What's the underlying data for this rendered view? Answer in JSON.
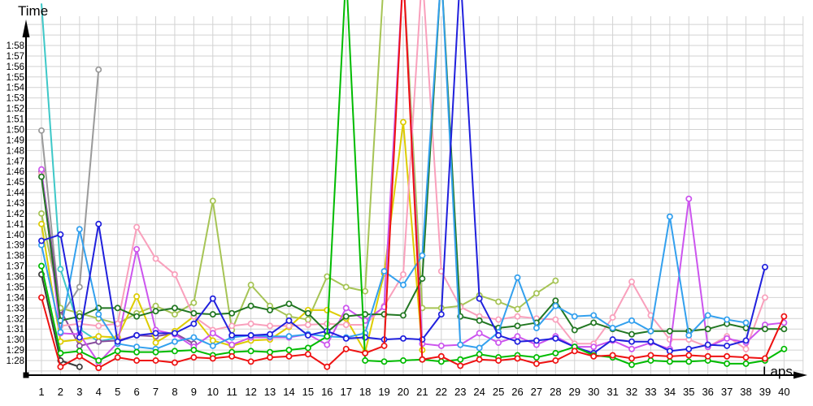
{
  "chart_data": {
    "type": "line",
    "title": "",
    "xlabel": "Laps",
    "ylabel": "Time",
    "x": [
      1,
      2,
      3,
      4,
      5,
      6,
      7,
      8,
      9,
      10,
      11,
      12,
      13,
      14,
      15,
      16,
      17,
      18,
      19,
      20,
      21,
      22,
      23,
      24,
      25,
      26,
      27,
      28,
      29,
      30,
      31,
      32,
      33,
      34,
      35,
      36,
      37,
      38,
      39,
      40
    ],
    "y_ticks": [
      "1:28",
      "1:29",
      "1:30",
      "1:31",
      "1:32",
      "1:33",
      "1:34",
      "1:35",
      "1:36",
      "1:37",
      "1:38",
      "1:39",
      "1:40",
      "1:41",
      "1:42",
      "1:43",
      "1:44",
      "1:45",
      "1:46",
      "1:47",
      "1:48",
      "1:49",
      "1:50",
      "1:51",
      "1:52",
      "1:53",
      "1:54",
      "1:55",
      "1:56",
      "1:57",
      "1:58"
    ],
    "ylim_seconds": [
      87,
      121
    ],
    "grid": true,
    "legend_position": "none",
    "units": "lap time in seconds after 1:00 (e.g. 88.4 = 1:28.4); null = no lap recorded; 125 = spike extending above visible axis (pit stop / off-chart)",
    "grid_color": "#d2d2d2",
    "axis_color": "#000000",
    "series": [
      {
        "name": "gray",
        "color": "#9a9a9a",
        "values": [
          109.9,
          92.2,
          95.0,
          115.7,
          null,
          null,
          null,
          null,
          null,
          null,
          null,
          null,
          null,
          null,
          null,
          null,
          null,
          null,
          null,
          null,
          null,
          null,
          null,
          null,
          null,
          null,
          null,
          null,
          null,
          null,
          null,
          null,
          null,
          null,
          null,
          null,
          null,
          null,
          null,
          null
        ]
      },
      {
        "name": "black",
        "color": "#3a3a3a",
        "values": [
          96.2,
          88.0,
          87.4,
          null,
          null,
          null,
          null,
          null,
          null,
          null,
          null,
          null,
          null,
          null,
          null,
          null,
          null,
          null,
          null,
          null,
          null,
          null,
          null,
          null,
          null,
          null,
          null,
          null,
          null,
          null,
          null,
          null,
          null,
          null,
          null,
          null,
          null,
          null,
          null,
          null
        ]
      },
      {
        "name": "cyan",
        "color": "#3ec8c8",
        "values": [
          122,
          96.7,
          91.0,
          89.8,
          90.2,
          null,
          null,
          null,
          null,
          null,
          null,
          null,
          null,
          null,
          null,
          null,
          null,
          null,
          null,
          null,
          null,
          null,
          null,
          null,
          null,
          null,
          null,
          null,
          null,
          null,
          null,
          null,
          null,
          null,
          null,
          null,
          null,
          null,
          null,
          null
        ]
      },
      {
        "name": "purple",
        "color": "#884d9e",
        "values": [
          106.0,
          92.8,
          89.4,
          89.8,
          89.9,
          90.4,
          90.3,
          90.6,
          89.6,
          null,
          null,
          null,
          null,
          null,
          null,
          null,
          null,
          null,
          null,
          null,
          null,
          null,
          null,
          null,
          null,
          null,
          null,
          null,
          null,
          null,
          null,
          null,
          null,
          null,
          null,
          null,
          null,
          null,
          null,
          null
        ]
      },
      {
        "name": "olive",
        "color": "#a6c455",
        "values": [
          102.0,
          93.0,
          92.5,
          92.0,
          91.5,
          92.5,
          93.2,
          92.4,
          93.5,
          103.2,
          90.9,
          95.2,
          93.2,
          92.2,
          91.9,
          96.0,
          95.0,
          94.6,
          125,
          125,
          93.0,
          93.0,
          93.2,
          94.2,
          93.6,
          92.9,
          94.4,
          95.6,
          null,
          null,
          null,
          null,
          null,
          null,
          null,
          null,
          null,
          null,
          null,
          null
        ]
      },
      {
        "name": "yellow",
        "color": "#ddcc00",
        "values": [
          101.0,
          89.8,
          90.0,
          90.3,
          90.2,
          94.1,
          89.7,
          90.8,
          92.2,
          89.9,
          89.4,
          89.9,
          90.0,
          91.2,
          92.8,
          92.8,
          92.0,
          88.8,
          96.3,
          110.7,
          89.0,
          null,
          null,
          null,
          null,
          null,
          null,
          null,
          null,
          null,
          null,
          null,
          null,
          null,
          null,
          null,
          null,
          null,
          null,
          null
        ]
      },
      {
        "name": "pink",
        "color": "#f9a0bc",
        "values": [
          105.8,
          91.3,
          91.5,
          91.3,
          91.5,
          100.7,
          97.7,
          96.2,
          92.2,
          90.9,
          91.3,
          91.5,
          91.3,
          91.3,
          91.4,
          91.5,
          91.4,
          91.4,
          93.2,
          96.2,
          125,
          96.5,
          93.1,
          92.2,
          91.9,
          92.2,
          92.0,
          91.9,
          89.6,
          89.6,
          92.1,
          95.5,
          92.3,
          90.0,
          90.0,
          89.3,
          90.3,
          89.1,
          94.0,
          null
        ]
      },
      {
        "name": "magenta",
        "color": "#cc55ee",
        "values": [
          106.2,
          90.6,
          90.5,
          87.8,
          89.7,
          98.6,
          90.9,
          90.5,
          89.3,
          90.6,
          89.5,
          90.2,
          90.2,
          90.2,
          90.5,
          89.5,
          93.0,
          91.8,
          93.1,
          125,
          89.6,
          89.4,
          89.5,
          90.6,
          89.7,
          90.3,
          89.5,
          90.3,
          89.3,
          89.3,
          89.9,
          89.1,
          89.7,
          89.1,
          103.4,
          89.3,
          90.1,
          89.7,
          91.4,
          91.6
        ]
      },
      {
        "name": "dark-green",
        "color": "#227722",
        "values": [
          105.5,
          91.8,
          92.2,
          93.0,
          93.0,
          92.2,
          92.7,
          93.0,
          92.5,
          92.4,
          92.5,
          93.2,
          92.8,
          93.4,
          92.5,
          90.7,
          92.2,
          92.4,
          92.4,
          92.3,
          95.8,
          125,
          92.2,
          91.8,
          91.1,
          91.3,
          91.6,
          93.7,
          90.9,
          91.6,
          91.0,
          90.5,
          90.8,
          90.8,
          90.8,
          91.0,
          91.5,
          91.1,
          91.0,
          91.0
        ]
      },
      {
        "name": "dodger-blue",
        "color": "#33a0ee",
        "values": [
          99.0,
          90.7,
          100.5,
          92.4,
          89.6,
          89.3,
          89.1,
          89.8,
          90.2,
          89.4,
          90.2,
          90.4,
          90.3,
          90.3,
          90.5,
          90.3,
          90.2,
          90.6,
          96.5,
          95.2,
          98.0,
          125,
          89.5,
          89.2,
          90.7,
          95.9,
          91.1,
          93.2,
          92.2,
          92.3,
          91.1,
          91.8,
          90.8,
          101.7,
          90.4,
          92.3,
          91.9,
          91.6,
          null,
          null
        ]
      },
      {
        "name": "blue",
        "color": "#2020dd",
        "values": [
          99.4,
          100.0,
          90.2,
          101.0,
          89.8,
          90.4,
          90.6,
          90.6,
          91.5,
          93.9,
          90.4,
          90.4,
          90.5,
          91.8,
          90.4,
          90.8,
          90.1,
          90.2,
          90.0,
          90.1,
          90.0,
          92.4,
          125,
          93.9,
          90.4,
          89.8,
          89.9,
          90.1,
          89.3,
          88.7,
          90.0,
          89.8,
          89.8,
          88.9,
          89.1,
          89.5,
          89.4,
          89.9,
          96.9,
          null
        ]
      },
      {
        "name": "green",
        "color": "#00bb00",
        "values": [
          97.0,
          88.7,
          88.9,
          88.0,
          88.9,
          88.8,
          88.8,
          88.9,
          89.0,
          88.5,
          88.8,
          88.9,
          88.8,
          89.0,
          89.2,
          90.3,
          125,
          88.0,
          87.9,
          88.0,
          88.1,
          87.9,
          88.1,
          88.6,
          88.3,
          88.5,
          88.3,
          88.7,
          89.3,
          88.5,
          88.3,
          87.6,
          88.0,
          87.9,
          87.9,
          88.0,
          87.7,
          87.7,
          88.0,
          89.1
        ]
      },
      {
        "name": "red",
        "color": "#ee1111",
        "values": [
          94.0,
          87.4,
          88.4,
          87.3,
          88.3,
          88.0,
          88.0,
          87.8,
          88.3,
          88.2,
          88.4,
          87.9,
          88.3,
          88.4,
          88.6,
          87.4,
          89.1,
          88.7,
          89.4,
          125,
          88.1,
          88.4,
          87.5,
          88.1,
          88.0,
          88.2,
          87.7,
          88.0,
          88.9,
          88.4,
          88.5,
          88.2,
          88.5,
          88.4,
          88.5,
          88.4,
          88.4,
          88.3,
          88.2,
          92.2
        ]
      }
    ]
  },
  "labels": {
    "y_axis_title": "Time",
    "x_axis_title": "Laps"
  }
}
